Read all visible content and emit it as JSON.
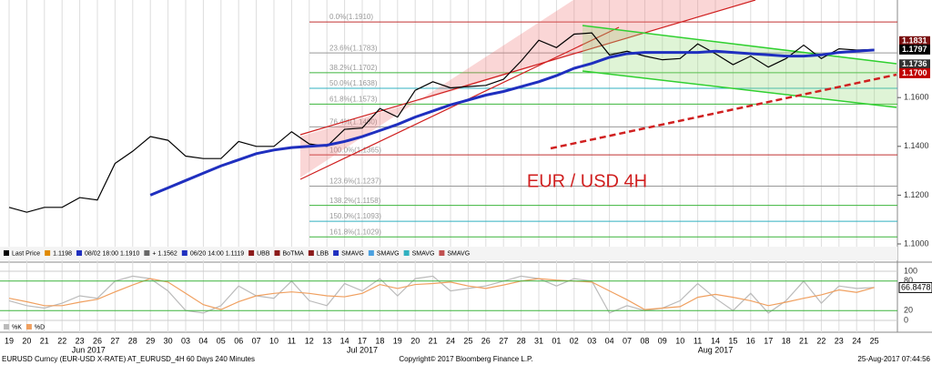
{
  "chart_data": [
    {
      "type": "line",
      "annotation": "EUR / USD 4H",
      "categories": [
        "19",
        "20",
        "21",
        "22",
        "23",
        "26",
        "27",
        "28",
        "29",
        "30",
        "03",
        "04",
        "05",
        "06",
        "07",
        "10",
        "11",
        "12",
        "13",
        "14",
        "17",
        "18",
        "19",
        "20",
        "21",
        "24",
        "25",
        "26",
        "27",
        "28",
        "31",
        "01",
        "02",
        "03",
        "04",
        "07",
        "08",
        "09",
        "10",
        "11",
        "14",
        "15",
        "16",
        "17",
        "18",
        "21",
        "22",
        "23",
        "24",
        "25"
      ],
      "months": [
        "Jun 2017",
        "Jul 2017",
        "Aug 2017"
      ],
      "series": [
        {
          "name": "Last Price",
          "color": "#000000",
          "values": [
            1.115,
            1.113,
            1.115,
            1.115,
            1.119,
            1.118,
            1.133,
            1.138,
            1.144,
            1.1425,
            1.136,
            1.135,
            1.135,
            1.142,
            1.14,
            1.14,
            1.146,
            1.141,
            1.14,
            1.147,
            1.1475,
            1.1555,
            1.152,
            1.163,
            1.1665,
            1.164,
            1.1645,
            1.165,
            1.1675,
            1.175,
            1.1835,
            1.1805,
            1.186,
            1.1865,
            1.1775,
            1.179,
            1.177,
            1.1755,
            1.176,
            1.182,
            1.178,
            1.1735,
            1.177,
            1.1725,
            1.176,
            1.1815,
            1.176,
            1.18,
            1.1795,
            1.1797
          ]
        },
        {
          "name": "SMAVG",
          "color": "#1f2fbf",
          "values": [
            null,
            null,
            null,
            null,
            null,
            null,
            null,
            null,
            1.12,
            1.123,
            1.126,
            1.129,
            1.132,
            1.1345,
            1.137,
            1.1385,
            1.1395,
            1.14,
            1.1405,
            1.142,
            1.144,
            1.1465,
            1.149,
            1.152,
            1.1545,
            1.157,
            1.159,
            1.161,
            1.1625,
            1.1645,
            1.1665,
            1.169,
            1.172,
            1.174,
            1.1765,
            1.178,
            1.1785,
            1.1785,
            1.1785,
            1.1785,
            1.179,
            1.1785,
            1.178,
            1.1775,
            1.177,
            1.177,
            1.1775,
            1.1785,
            1.179,
            1.1795
          ]
        }
      ],
      "ylim": [
        1.1,
        1.2
      ],
      "yticks": [
        {
          "value": 1.1,
          "label": "1.1000"
        },
        {
          "value": 1.12,
          "label": "1.1200"
        },
        {
          "value": 1.14,
          "label": "1.1400"
        },
        {
          "value": 1.16,
          "label": "1.1600"
        }
      ],
      "fib_levels": [
        {
          "value": 1.191,
          "label": "0.0%(1.1910)",
          "color": "#c03030"
        },
        {
          "value": 1.1783,
          "label": "23.6%(1.1783)",
          "color": "#999999"
        },
        {
          "value": 1.1702,
          "label": "38.2%(1.1702)",
          "color": "#3cb43c"
        },
        {
          "value": 1.1638,
          "label": "50.0%(1.1638)",
          "color": "#30b0c0"
        },
        {
          "value": 1.1573,
          "label": "61.8%(1.1573)",
          "color": "#3cb43c"
        },
        {
          "value": 1.148,
          "label": "76.4%(1.1480)",
          "color": "#999999"
        },
        {
          "value": 1.1365,
          "label": "100.0%(1.1365)",
          "color": "#c03030"
        },
        {
          "value": 1.1237,
          "label": "123.6%(1.1237)",
          "color": "#999999"
        },
        {
          "value": 1.1158,
          "label": "138.2%(1.1158)",
          "color": "#3cb43c"
        },
        {
          "value": 1.1093,
          "label": "150.0%(1.1093)",
          "color": "#30b0c0"
        },
        {
          "value": 1.1029,
          "label": "161.8%(1.1029)",
          "color": "#3cb43c"
        }
      ],
      "price_tags": [
        {
          "value": 1.1831,
          "color": "#7a1010"
        },
        {
          "value": 1.1797,
          "color": "#000000"
        },
        {
          "value": 1.1736,
          "color": "#333333"
        },
        {
          "value": 1.17,
          "label": "1.1700",
          "color": "#c00000"
        }
      ],
      "legend": [
        {
          "label": "Last Price",
          "color": "#000000"
        },
        {
          "label": "1.1198",
          "color": "#e08a00"
        },
        {
          "label": "08/02 18:00 1.1910",
          "color": "#1f2fbf"
        },
        {
          "label": "+ 1.1562",
          "color": "#666666"
        },
        {
          "label": "06/20 14:00 1.1119",
          "color": "#1f2fbf"
        },
        {
          "label": "UBB",
          "color": "#8b1a1a"
        },
        {
          "label": "BoTMA",
          "color": "#8b1a1a"
        },
        {
          "label": "LBB",
          "color": "#8b1a1a"
        },
        {
          "label": "SMAVG",
          "color": "#1f2fbf"
        },
        {
          "label": "SMAVG",
          "color": "#4aa0e0"
        },
        {
          "label": "SMAVG",
          "color": "#30b0c0"
        },
        {
          "label": "SMAVG",
          "color": "#c05050"
        }
      ]
    },
    {
      "type": "line",
      "series": [
        {
          "name": "%K",
          "color": "#bbbbbb",
          "values": [
            40,
            30,
            25,
            35,
            50,
            45,
            80,
            90,
            85,
            60,
            20,
            15,
            30,
            70,
            50,
            45,
            80,
            40,
            30,
            75,
            60,
            85,
            50,
            85,
            90,
            60,
            65,
            70,
            80,
            90,
            85,
            70,
            85,
            80,
            15,
            30,
            20,
            25,
            40,
            75,
            45,
            20,
            55,
            15,
            40,
            80,
            35,
            70,
            65,
            67
          ]
        },
        {
          "name": "%D",
          "color": "#f0a060",
          "values": [
            45,
            38,
            30,
            30,
            37,
            43,
            58,
            72,
            85,
            78,
            55,
            32,
            22,
            38,
            50,
            55,
            58,
            55,
            50,
            48,
            55,
            73,
            65,
            73,
            75,
            78,
            70,
            65,
            72,
            80,
            85,
            82,
            80,
            78,
            60,
            42,
            22,
            25,
            28,
            47,
            53,
            47,
            40,
            30,
            37,
            45,
            52,
            62,
            57,
            67
          ]
        }
      ],
      "ylim": [
        0,
        100
      ],
      "yticks": [
        0,
        20,
        80,
        100
      ],
      "price_tag": 66.8478
    },
    {
      "footer_left": "EURUSD Curncy (EUR-USD X-RATE) AT_EURUSD_4H 60 Days 240 Minutes",
      "footer_center": "Copyright© 2017 Bloomberg Finance L.P.",
      "footer_right": "25-Aug-2017 07:44:56"
    }
  ]
}
